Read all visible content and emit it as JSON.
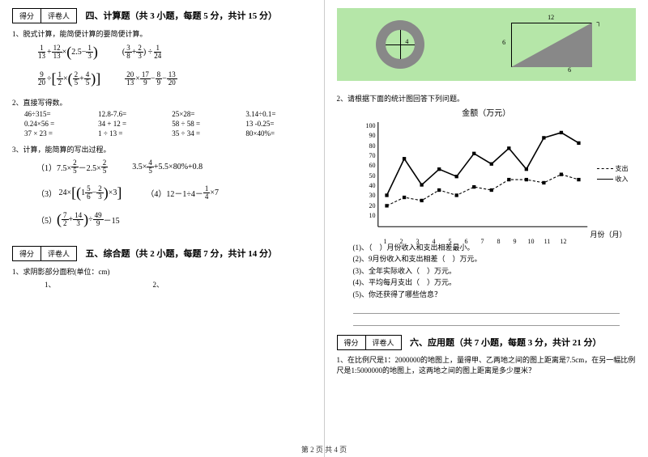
{
  "scorebox": {
    "score": "得分",
    "reviewer": "评卷人"
  },
  "section4": {
    "title": "四、计算题（共 3 小题，每题 5 分，共计 15 分）",
    "q1": "1、脱式计算，能简便计算的要简便计算。",
    "q2": "2、直接写得数。",
    "q3": "3、计算，能简算的写出过程。"
  },
  "m1": {
    "a": {
      "n1": "1",
      "d1": "13",
      "n2": "12",
      "d2": "13",
      "w": "2.5",
      "n3": "1",
      "d3": "3"
    },
    "b": {
      "n1": "3",
      "d1": "8",
      "n2": "2",
      "d2": "3",
      "n3": "1",
      "d3": "24"
    }
  },
  "m2": {
    "a": {
      "n1": "9",
      "d1": "20",
      "n2": "1",
      "d2": "2",
      "n3": "2",
      "d3": "5",
      "n4": "4",
      "d4": "5"
    },
    "b": {
      "n1": "20",
      "d1": "13",
      "n2": "17",
      "d2": "9",
      "n3": "8",
      "d3": "9",
      "n4": "13",
      "d4": "20"
    }
  },
  "calc": {
    "c1": "46÷315=",
    "c2": "12.8-7.6=",
    "c3": "25×28=",
    "c4": "3.14÷0.1=",
    "c5": "0.24×56 =",
    "c6": "34 + 12 =",
    "c7": "58 ÷ 58 =",
    "c8": "13 -0.25=",
    "c9": "37 × 23 =",
    "c10": "1 ÷ 13 =",
    "c11": "35 ÷ 34 =",
    "c12": "80×40%="
  },
  "m3": {
    "a": {
      "l1": "（1）7.5×",
      "n1": "2",
      "d1": "5",
      "mid": "－2.5×",
      "n2": "2",
      "d2": "5"
    },
    "b": {
      "l1": "3.5×",
      "n1": "4",
      "d1": "5",
      "l2": "+5.5×80%+0.8"
    },
    "c": {
      "l1": "24×",
      "n1": "5",
      "d1": "6",
      "n2": "2",
      "d2": "3",
      "l2": "×3",
      "idx": "（3）"
    },
    "d": {
      "idx": "（4）12－1÷4－",
      "n1": "1",
      "d1": "4",
      "l2": "×7"
    },
    "e": {
      "idx": "（5）",
      "n1": "7",
      "d1": "2",
      "n2": "14",
      "d2": "3",
      "n3": "49",
      "d3": "9",
      "l2": "－15"
    }
  },
  "section5": {
    "title": "五、综合题（共 2 小题，每题 7 分，共计 14 分）",
    "q1": "1、求阴影部分面积(单位：cm)",
    "sub1": "1、",
    "sub2": "2、"
  },
  "section6": {
    "title": "六、应用题（共 7 小题，每题 3 分，共计 21 分）",
    "q1": "1、在比例尺是1：2000000的地图上，量得甲、乙两地之间的图上距离是7.5cm，在另一幅比例尺是1:5000000的地图上，这两地之间的图上距离是多少厘米？",
    "q2": "2、请根据下面的统计图回答下列问题。"
  },
  "diagram": {
    "ring_label": "4",
    "rect_w": "12",
    "rect_h_left": "6",
    "tri_base": "6"
  },
  "chart": {
    "title": "金额（万元）",
    "y_title": "",
    "x_title": "月份（月）",
    "y_ticks": [
      "100",
      "90",
      "80",
      "70",
      "60",
      "50",
      "40",
      "30",
      "20",
      "10"
    ],
    "x_ticks": [
      "1",
      "2",
      "3",
      "4",
      "5",
      "6",
      "7",
      "8",
      "9",
      "10",
      "11",
      "12"
    ],
    "legend": {
      "expense": "支出",
      "income": "收入"
    },
    "income": [
      30,
      65,
      40,
      55,
      48,
      70,
      60,
      75,
      55,
      85,
      90,
      80
    ],
    "expense": [
      20,
      28,
      25,
      35,
      30,
      38,
      35,
      45,
      45,
      42,
      50,
      45
    ],
    "colors": {
      "line": "#000000",
      "grid": "#bbbbbb",
      "bg": "#ffffff"
    }
  },
  "chart_q": {
    "q1": "(1)、（　）月份收入和支出相差最小。",
    "q2": "(2)、9月份收入和支出相差（　）万元。",
    "q3": "(3)、全年实际收入（　）万元。",
    "q4": "(4)、平均每月支出（　）万元。",
    "q5": "(5)、你还获得了哪些信息？"
  },
  "footer": "第 2 页 共 4 页"
}
